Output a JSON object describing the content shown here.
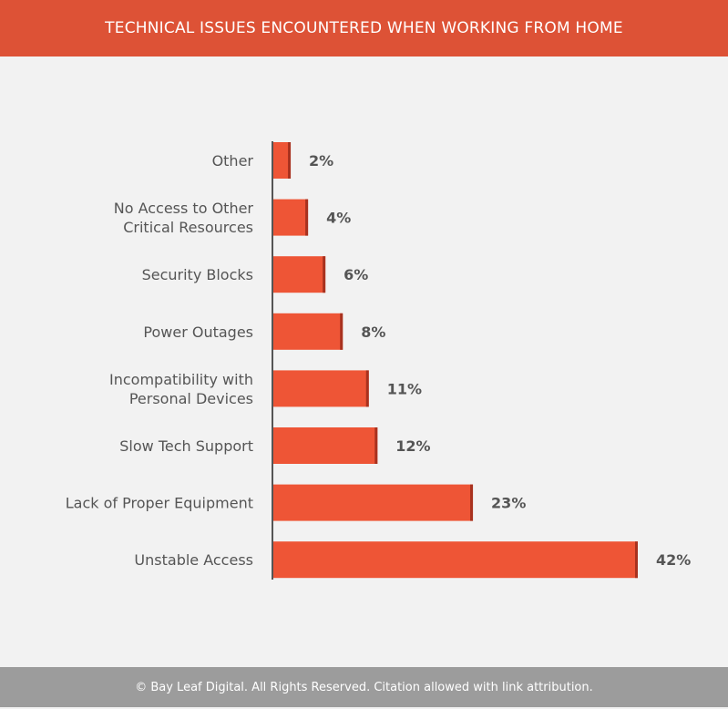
{
  "chart_data": {
    "type": "bar",
    "orientation": "horizontal",
    "title": "TECHNICAL ISSUES ENCOUNTERED WHEN WORKING FROM HOME",
    "categories": [
      [
        "Other"
      ],
      [
        "No Access to Other",
        "Critical Resources"
      ],
      [
        "Security Blocks"
      ],
      [
        "Power Outages"
      ],
      [
        "Incompatibility with",
        "Personal Devices"
      ],
      [
        "Slow Tech Support"
      ],
      [
        "Lack of Proper Equipment"
      ],
      [
        "Unstable Access"
      ]
    ],
    "values": [
      2,
      4,
      6,
      8,
      11,
      12,
      23,
      42
    ],
    "value_labels": [
      "2%",
      "4%",
      "6%",
      "8%",
      "11%",
      "12%",
      "23%",
      "42%"
    ],
    "xlabel": "",
    "ylabel": "",
    "xlim": [
      0,
      42
    ],
    "grid": false,
    "bar_color": "#ee5536"
  },
  "footer": "© Bay Leaf Digital. All Rights Reserved. Citation allowed with link attribution."
}
